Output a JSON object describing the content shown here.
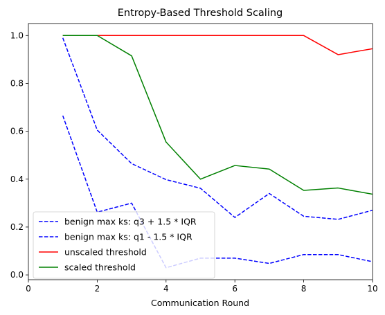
{
  "chart_data": {
    "type": "line",
    "title": "Entropy-Based Threshold Scaling",
    "xlabel": "Communication Round",
    "ylabel": "",
    "xlim": [
      0,
      10
    ],
    "ylim": [
      -0.02,
      1.05
    ],
    "grid": false,
    "legend_position": "lower-left",
    "x_ticks": [
      {
        "value": 0,
        "label": "0"
      },
      {
        "value": 2,
        "label": "2"
      },
      {
        "value": 4,
        "label": "4"
      },
      {
        "value": 6,
        "label": "6"
      },
      {
        "value": 8,
        "label": "8"
      },
      {
        "value": 10,
        "label": "10"
      }
    ],
    "y_ticks": [
      {
        "value": 0.0,
        "label": "0.0"
      },
      {
        "value": 0.2,
        "label": "0.2"
      },
      {
        "value": 0.4,
        "label": "0.4"
      },
      {
        "value": 0.6,
        "label": "0.6"
      },
      {
        "value": 0.8,
        "label": "0.8"
      },
      {
        "value": 1.0,
        "label": "1.0"
      }
    ],
    "x": [
      1,
      2,
      3,
      4,
      5,
      6,
      7,
      8,
      9,
      10
    ],
    "series": [
      {
        "name": "benign max ks: q3 + 1.5 * IQR",
        "color": "#0000ff",
        "dashed": true,
        "values": [
          0.99,
          0.605,
          0.465,
          0.398,
          0.362,
          0.24,
          0.34,
          0.245,
          0.232,
          0.27
        ]
      },
      {
        "name": "benign max ks: q1 - 1.5 * IQR",
        "color": "#0000ff",
        "dashed": true,
        "values": [
          0.665,
          0.262,
          0.3,
          0.03,
          0.07,
          0.07,
          0.048,
          0.085,
          0.085,
          0.055
        ]
      },
      {
        "name": "unscaled threshold",
        "color": "#ff0000",
        "dashed": false,
        "values": [
          1.0,
          1.0,
          1.0,
          1.0,
          1.0,
          1.0,
          1.0,
          1.0,
          0.92,
          0.945
        ]
      },
      {
        "name": "scaled threshold",
        "color": "#008000",
        "dashed": false,
        "values": [
          1.0,
          1.0,
          0.915,
          0.555,
          0.4,
          0.457,
          0.442,
          0.353,
          0.363,
          0.337
        ]
      }
    ]
  }
}
